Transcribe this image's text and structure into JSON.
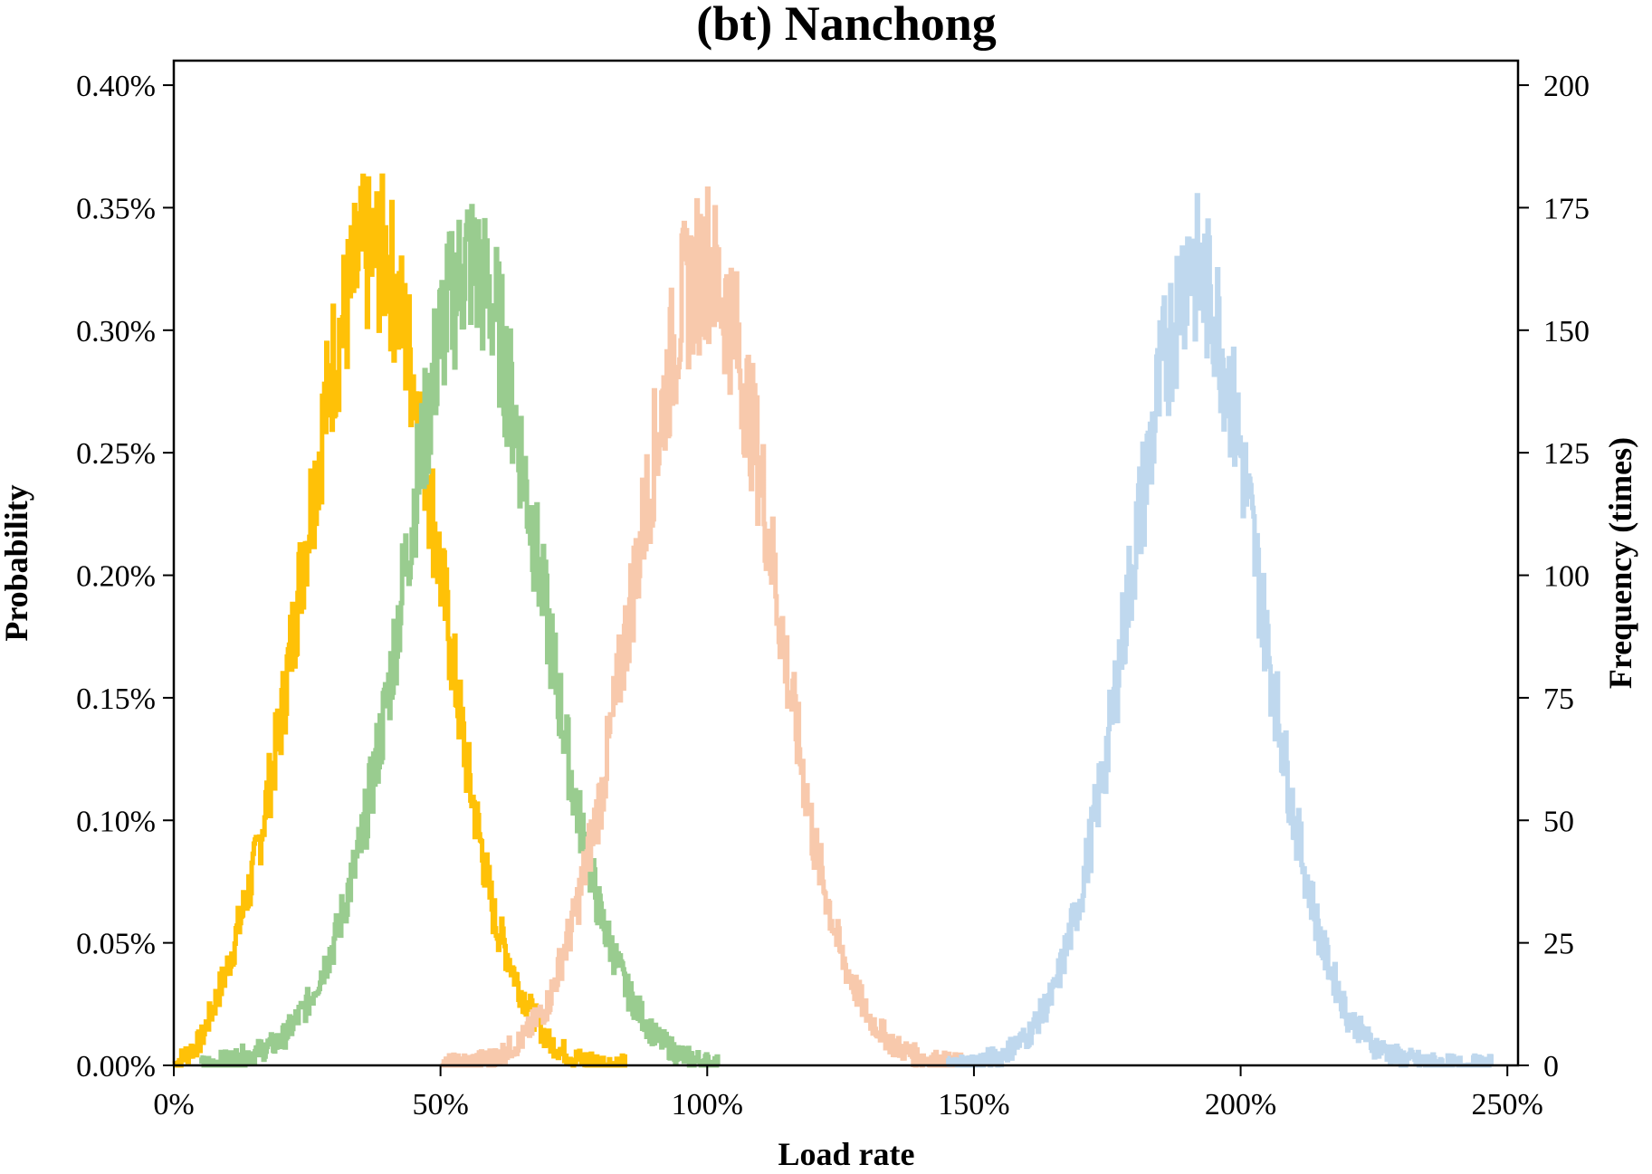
{
  "chart_data": {
    "type": "line",
    "title": "(bt) Nanchong",
    "xlabel": "Load rate",
    "ylabel_left": "Probability",
    "ylabel_right": "Frequency (times)",
    "xlim": [
      0,
      252
    ],
    "ylim_left": [
      0,
      0.41
    ],
    "ylim_right": [
      0,
      205
    ],
    "x_ticks": [
      0,
      50,
      100,
      150,
      200,
      250
    ],
    "x_tick_labels": [
      "0%",
      "50%",
      "100%",
      "150%",
      "200%",
      "250%"
    ],
    "y_left_ticks": [
      0,
      0.05,
      0.1,
      0.15,
      0.2,
      0.25,
      0.3,
      0.35,
      0.4
    ],
    "y_left_tick_labels": [
      "0.00%",
      "0.05%",
      "0.10%",
      "0.15%",
      "0.20%",
      "0.25%",
      "0.30%",
      "0.35%",
      "0.40%"
    ],
    "y_right_ticks": [
      0,
      25,
      50,
      75,
      100,
      125,
      150,
      175,
      200
    ],
    "y_right_tick_labels": [
      "0",
      "25",
      "50",
      "75",
      "100",
      "125",
      "150",
      "175",
      "200"
    ],
    "grid": false,
    "legend": "none",
    "series": [
      {
        "color": "#FFC107",
        "x": [
          0,
          5,
          10,
          15,
          20,
          25,
          30,
          35,
          40,
          45,
          50,
          55,
          60,
          65,
          70,
          75,
          80,
          85
        ],
        "y": [
          0.0,
          0.01,
          0.04,
          0.08,
          0.14,
          0.22,
          0.29,
          0.33,
          0.33,
          0.28,
          0.2,
          0.12,
          0.06,
          0.03,
          0.01,
          0.003,
          0.001,
          0.0
        ]
      },
      {
        "color": "#99CC8F",
        "x": [
          5,
          10,
          15,
          20,
          25,
          30,
          35,
          40,
          45,
          50,
          55,
          60,
          65,
          70,
          75,
          80,
          85,
          90,
          95,
          100,
          102
        ],
        "y": [
          0.0,
          0.002,
          0.005,
          0.01,
          0.025,
          0.05,
          0.09,
          0.15,
          0.23,
          0.3,
          0.33,
          0.31,
          0.25,
          0.18,
          0.11,
          0.06,
          0.03,
          0.012,
          0.004,
          0.001,
          0.0
        ]
      },
      {
        "color": "#F8C9AC",
        "x": [
          50,
          55,
          60,
          65,
          70,
          75,
          80,
          85,
          90,
          95,
          100,
          105,
          110,
          115,
          120,
          125,
          130,
          135,
          140,
          145,
          150
        ],
        "y": [
          0.0,
          0.001,
          0.003,
          0.01,
          0.025,
          0.06,
          0.11,
          0.18,
          0.25,
          0.31,
          0.33,
          0.3,
          0.24,
          0.16,
          0.09,
          0.045,
          0.02,
          0.008,
          0.003,
          0.001,
          0.0
        ]
      },
      {
        "color": "#BFD8EE",
        "x": [
          145,
          150,
          155,
          160,
          165,
          170,
          175,
          180,
          185,
          190,
          195,
          200,
          205,
          210,
          215,
          220,
          225,
          230,
          235,
          240,
          247
        ],
        "y": [
          0.0,
          0.001,
          0.004,
          0.012,
          0.03,
          0.07,
          0.13,
          0.21,
          0.28,
          0.33,
          0.31,
          0.25,
          0.17,
          0.1,
          0.05,
          0.02,
          0.008,
          0.003,
          0.001,
          0.0,
          0.0
        ]
      }
    ]
  }
}
